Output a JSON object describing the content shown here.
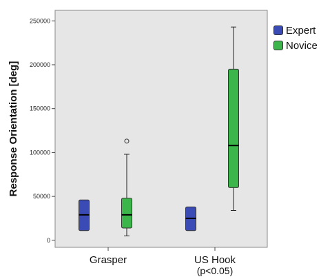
{
  "chart_data": {
    "type": "box",
    "ylabel": "Response Orientation [deg]",
    "yticks": [
      0,
      50000,
      100000,
      150000,
      200000,
      250000
    ],
    "ytick_labels": [
      "0",
      "50000",
      "100000",
      "150000",
      "200000",
      "250000"
    ],
    "ylim": [
      -8000,
      262000
    ],
    "categories": [
      "Grasper",
      "US Hook"
    ],
    "category_sublabels": [
      "",
      "(p<0.05)"
    ],
    "legend_position": "right",
    "series": [
      {
        "name": "Expert",
        "color": "#3b4bb5",
        "boxes": [
          {
            "min": 11000,
            "q1": 11000,
            "median": 29000,
            "q3": 46000,
            "max": 46000,
            "outliers": []
          },
          {
            "min": 11000,
            "q1": 11000,
            "median": 25000,
            "q3": 38000,
            "max": 38000,
            "outliers": []
          }
        ]
      },
      {
        "name": "Novice",
        "color": "#3cb54a",
        "boxes": [
          {
            "min": 5000,
            "q1": 14000,
            "median": 29000,
            "q3": 48000,
            "max": 98000,
            "outliers": [
              113000
            ]
          },
          {
            "min": 34000,
            "q1": 60000,
            "median": 108000,
            "q3": 195000,
            "max": 243000,
            "outliers": []
          }
        ]
      }
    ]
  }
}
